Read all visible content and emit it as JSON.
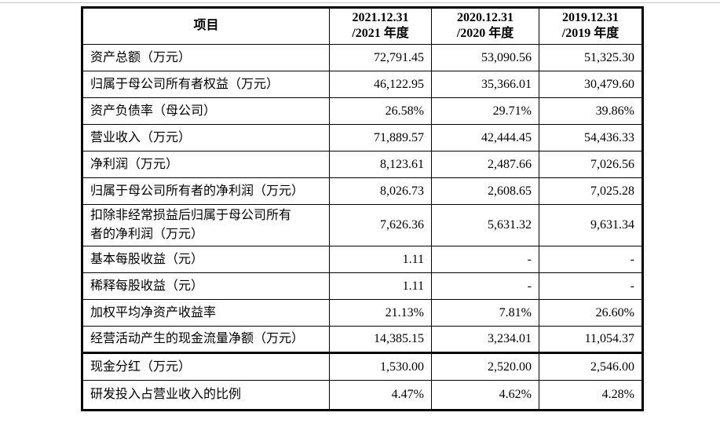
{
  "page": {
    "background": "#ffffff",
    "top_divider_color": "#c8c8c8",
    "border_color": "#000000",
    "text_color": "#000000"
  },
  "table": {
    "header": {
      "item": "项目",
      "periods": [
        {
          "line1": "2021.12.31",
          "line2": "/2021 年度"
        },
        {
          "line1": "2020.12.31",
          "line2": "/2020 年度"
        },
        {
          "line1": "2019.12.31",
          "line2": "/2019 年度"
        }
      ]
    },
    "rows": [
      {
        "label": "资产总额（万元）",
        "v2021": "72,791.45",
        "v2020": "53,090.56",
        "v2019": "51,325.30"
      },
      {
        "label": "归属于母公司所有者权益（万元）",
        "v2021": "46,122.95",
        "v2020": "35,366.01",
        "v2019": "30,479.60"
      },
      {
        "label": "资产负债率（母公司）",
        "v2021": "26.58%",
        "v2020": "29.71%",
        "v2019": "39.86%"
      },
      {
        "label": "营业收入（万元）",
        "v2021": "71,889.57",
        "v2020": "42,444.45",
        "v2019": "54,436.33"
      },
      {
        "label": "净利润（万元）",
        "v2021": "8,123.61",
        "v2020": "2,487.66",
        "v2019": "7,026.56"
      },
      {
        "label": "归属于母公司所有者的净利润（万元）",
        "v2021": "8,026.73",
        "v2020": "2,608.65",
        "v2019": "7,025.28"
      },
      {
        "label": "扣除非经常损益后归属于母公司所有\n者的净利润（万元）",
        "v2021": "7,626.36",
        "v2020": "5,631.32",
        "v2019": "9,631.34"
      },
      {
        "label": "基本每股收益（元）",
        "v2021": "1.11",
        "v2020": "-",
        "v2019": "-"
      },
      {
        "label": "稀释每股收益（元）",
        "v2021": "1.11",
        "v2020": "-",
        "v2019": "-"
      },
      {
        "label": "加权平均净资产收益率",
        "v2021": "21.13%",
        "v2020": "7.81%",
        "v2019": "26.60%"
      },
      {
        "label": "经营活动产生的现金流量净额（万元）",
        "v2021": "14,385.15",
        "v2020": "3,234.01",
        "v2019": "11,054.37"
      },
      {
        "label": "现金分红（万元）",
        "v2021": "1,530.00",
        "v2020": "2,520.00",
        "v2019": "2,546.00"
      },
      {
        "label": "研发投入占营业收入的比例",
        "v2021": "4.47%",
        "v2020": "4.62%",
        "v2019": "4.28%"
      }
    ]
  },
  "chart_data": {
    "type": "table",
    "columns": [
      "项目",
      "2021.12.31/2021 年度",
      "2020.12.31/2020 年度",
      "2019.12.31/2019 年度"
    ],
    "rows": [
      [
        "资产总额（万元）",
        "72,791.45",
        "53,090.56",
        "51,325.30"
      ],
      [
        "归属于母公司所有者权益（万元）",
        "46,122.95",
        "35,366.01",
        "30,479.60"
      ],
      [
        "资产负债率（母公司）",
        "26.58%",
        "29.71%",
        "39.86%"
      ],
      [
        "营业收入（万元）",
        "71,889.57",
        "42,444.45",
        "54,436.33"
      ],
      [
        "净利润（万元）",
        "8,123.61",
        "2,487.66",
        "7,026.56"
      ],
      [
        "归属于母公司所有者的净利润（万元）",
        "8,026.73",
        "2,608.65",
        "7,025.28"
      ],
      [
        "扣除非经常损益后归属于母公司所有者的净利润（万元）",
        "7,626.36",
        "5,631.32",
        "9,631.34"
      ],
      [
        "基本每股收益（元）",
        "1.11",
        "-",
        "-"
      ],
      [
        "稀释每股收益（元）",
        "1.11",
        "-",
        "-"
      ],
      [
        "加权平均净资产收益率",
        "21.13%",
        "7.81%",
        "26.60%"
      ],
      [
        "经营活动产生的现金流量净额（万元）",
        "14,385.15",
        "3,234.01",
        "11,054.37"
      ],
      [
        "现金分红（万元）",
        "1,530.00",
        "2,520.00",
        "2,546.00"
      ],
      [
        "研发投入占营业收入的比例",
        "4.47%",
        "4.62%",
        "4.28%"
      ]
    ]
  }
}
